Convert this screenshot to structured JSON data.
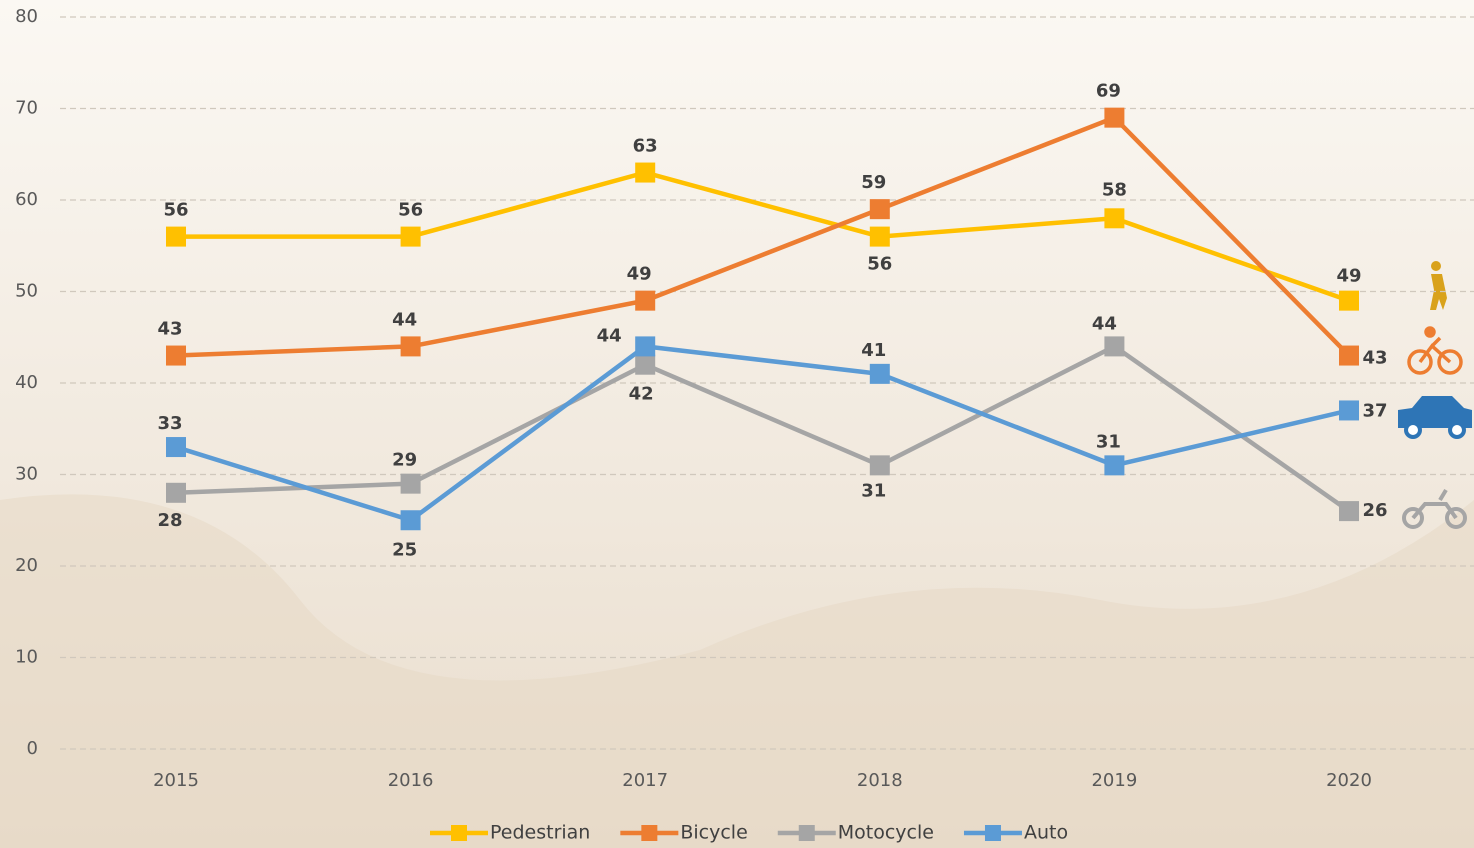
{
  "chart_data": {
    "type": "line",
    "x": [
      "2015",
      "2016",
      "2017",
      "2018",
      "2019",
      "2020"
    ],
    "series": [
      {
        "name": "Pedestrian",
        "color": "#FFC000",
        "values": [
          56,
          56,
          63,
          56,
          58,
          49
        ]
      },
      {
        "name": "Bicycle",
        "color": "#ED7D31",
        "values": [
          43,
          44,
          49,
          59,
          69,
          43
        ]
      },
      {
        "name": "Motocycle",
        "color": "#A5A5A5",
        "values": [
          28,
          29,
          42,
          31,
          44,
          26
        ]
      },
      {
        "name": "Auto",
        "color": "#5B9BD5",
        "values": [
          33,
          25,
          44,
          41,
          31,
          37
        ]
      }
    ],
    "ylim": [
      0,
      80
    ],
    "yticks": [
      0,
      10,
      20,
      30,
      40,
      50,
      60,
      70,
      80
    ],
    "grid": true,
    "legend": "bottom"
  }
}
